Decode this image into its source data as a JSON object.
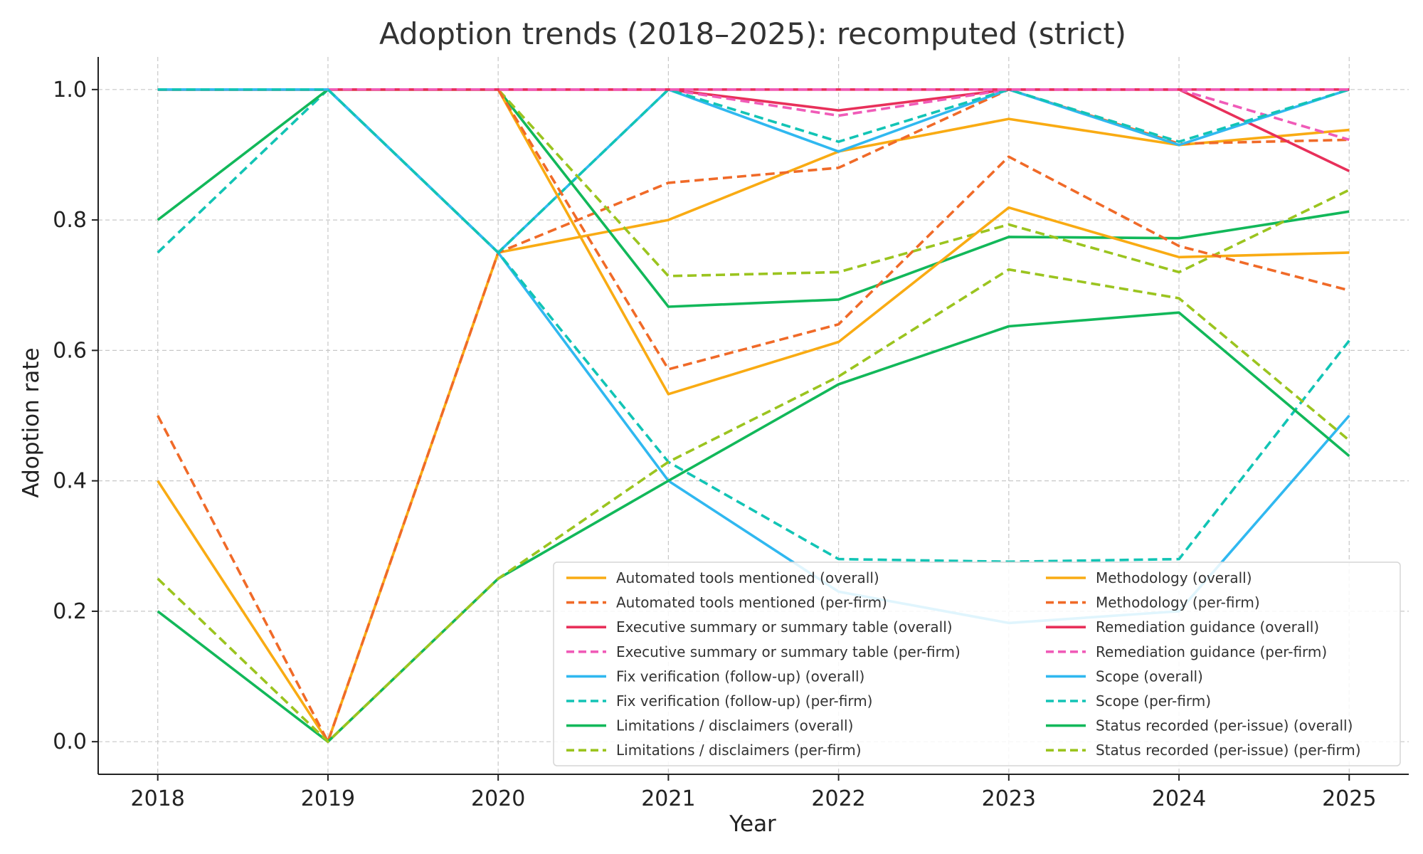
{
  "chart_data": {
    "type": "line",
    "title": "Adoption trends (2018–2025): recomputed (strict)",
    "xlabel": "Year",
    "ylabel": "Adoption rate",
    "x": [
      2018,
      2019,
      2020,
      2021,
      2022,
      2023,
      2024,
      2025
    ],
    "xlim": [
      2017.65,
      2025.35
    ],
    "ylim": [
      -0.05,
      1.05
    ],
    "yticks": [
      0.0,
      0.2,
      0.4,
      0.6,
      0.8,
      1.0
    ],
    "ytick_labels": [
      "0.0",
      "0.2",
      "0.4",
      "0.6",
      "0.8",
      "1.0"
    ],
    "xtick_labels": [
      "2018",
      "2019",
      "2020",
      "2021",
      "2022",
      "2023",
      "2024",
      "2025"
    ],
    "grid": true,
    "legend_position": "lower-right",
    "legend_columns": 2,
    "series": [
      {
        "name": "Automated tools mentioned (overall)",
        "color": "#F9AB13",
        "dash": "solid",
        "values": [
          0.4,
          0.0,
          0.75,
          0.8,
          0.905,
          0.955,
          0.915,
          0.938
        ]
      },
      {
        "name": "Automated tools mentioned (per-firm)",
        "color": "#F06A28",
        "dash": "dashed",
        "values": [
          0.5,
          0.0,
          0.75,
          0.857,
          0.88,
          1.0,
          0.917,
          0.923
        ]
      },
      {
        "name": "Executive summary or summary table (overall)",
        "color": "#E8305A",
        "dash": "solid",
        "values": [
          1.0,
          1.0,
          1.0,
          1.0,
          0.968,
          1.0,
          1.0,
          0.875
        ]
      },
      {
        "name": "Executive summary or summary table (per-firm)",
        "color": "#F05BB8",
        "dash": "dashed",
        "values": [
          1.0,
          1.0,
          1.0,
          1.0,
          0.96,
          1.0,
          1.0,
          0.923
        ]
      },
      {
        "name": "Fix verification (follow-up) (overall)",
        "color": "#30B8F0",
        "dash": "solid",
        "values": [
          1.0,
          1.0,
          0.75,
          1.0,
          0.905,
          1.0,
          0.915,
          1.0
        ]
      },
      {
        "name": "Fix verification (follow-up) (per-firm)",
        "color": "#12C4B5",
        "dash": "dashed",
        "values": [
          0.75,
          1.0,
          0.75,
          1.0,
          0.92,
          1.0,
          0.92,
          1.0
        ]
      },
      {
        "name": "Limitations / disclaimers (overall)",
        "color": "#12B85A",
        "dash": "solid",
        "values": [
          0.8,
          1.0,
          1.0,
          0.667,
          0.678,
          0.774,
          0.772,
          0.813
        ]
      },
      {
        "name": "Limitations / disclaimers (per-firm)",
        "color": "#9BC41F",
        "dash": "dashed",
        "values": [
          1.0,
          1.0,
          1.0,
          0.714,
          0.72,
          0.793,
          0.72,
          0.846
        ]
      },
      {
        "name": "Methodology (overall)",
        "color": "#F9AB13",
        "dash": "solid",
        "values": [
          1.0,
          1.0,
          1.0,
          0.533,
          0.613,
          0.819,
          0.743,
          0.75
        ]
      },
      {
        "name": "Methodology (per-firm)",
        "color": "#F06A28",
        "dash": "dashed",
        "values": [
          1.0,
          1.0,
          1.0,
          0.571,
          0.64,
          0.897,
          0.76,
          0.692
        ]
      },
      {
        "name": "Remediation guidance (overall)",
        "color": "#E8305A",
        "dash": "solid",
        "values": [
          1.0,
          1.0,
          1.0,
          1.0,
          1.0,
          1.0,
          1.0,
          1.0
        ]
      },
      {
        "name": "Remediation guidance (per-firm)",
        "color": "#F05BB8",
        "dash": "dashed",
        "values": [
          1.0,
          1.0,
          1.0,
          1.0,
          1.0,
          1.0,
          1.0,
          1.0
        ]
      },
      {
        "name": "Scope (overall)",
        "color": "#30B8F0",
        "dash": "solid",
        "values": [
          1.0,
          1.0,
          0.75,
          0.4,
          0.23,
          0.182,
          0.2,
          0.5
        ]
      },
      {
        "name": "Scope (per-firm)",
        "color": "#12C4B5",
        "dash": "dashed",
        "values": [
          1.0,
          1.0,
          0.75,
          0.429,
          0.28,
          0.276,
          0.28,
          0.615
        ]
      },
      {
        "name": "Status recorded (per-issue) (overall)",
        "color": "#12B85A",
        "dash": "solid",
        "values": [
          0.2,
          0.0,
          0.25,
          0.4,
          0.548,
          0.637,
          0.658,
          0.438
        ]
      },
      {
        "name": "Status recorded (per-issue) (per-firm)",
        "color": "#9BC41F",
        "dash": "dashed",
        "values": [
          0.25,
          0.0,
          0.25,
          0.429,
          0.56,
          0.724,
          0.68,
          0.462
        ]
      }
    ]
  }
}
